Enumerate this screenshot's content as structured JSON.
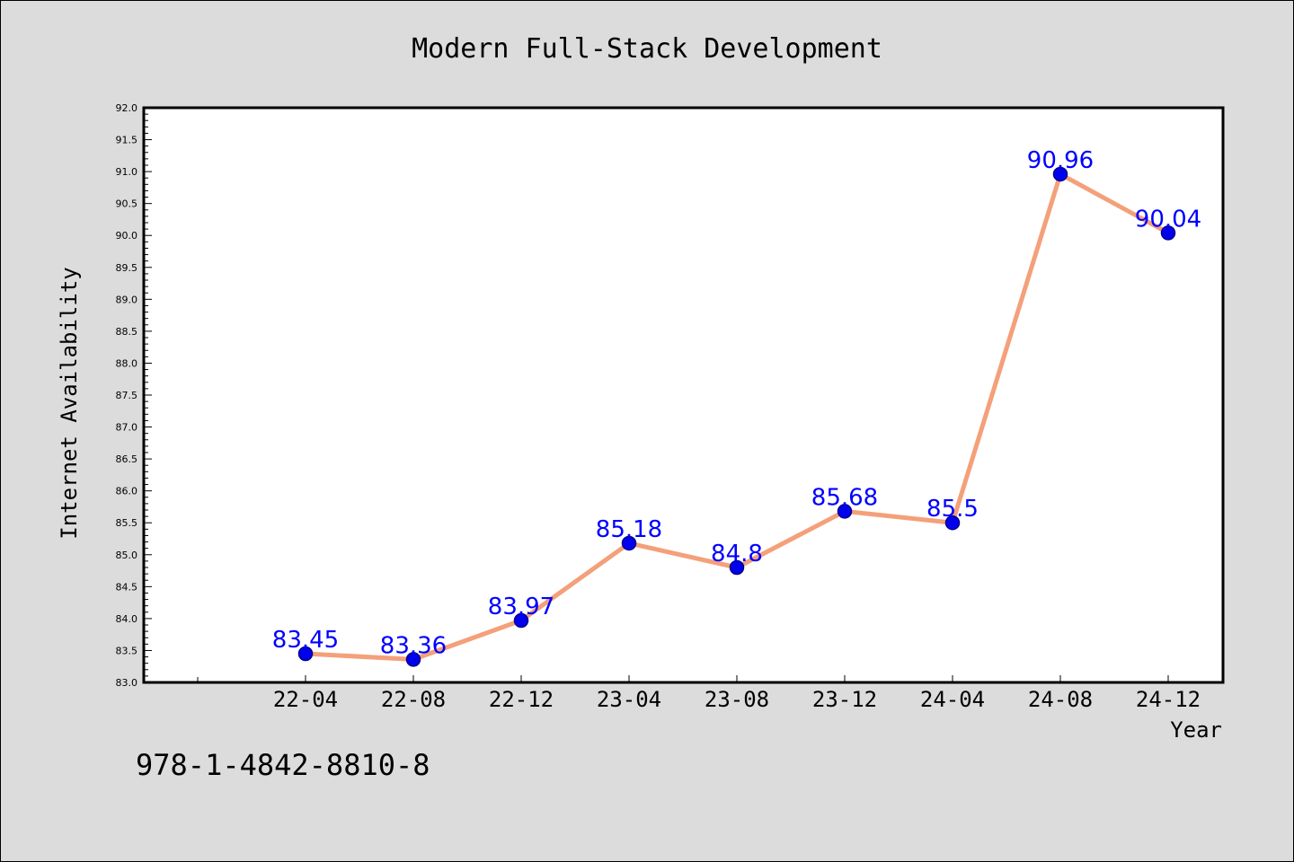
{
  "chart_data": {
    "type": "line",
    "title": "Modern Full-Stack Development",
    "xlabel": "Year",
    "ylabel": "Internet Availability",
    "categories": [
      "22-04",
      "22-08",
      "22-12",
      "23-04",
      "23-08",
      "23-12",
      "24-04",
      "24-08",
      "24-12"
    ],
    "series": [
      {
        "values": [
          83.45,
          83.36,
          83.97,
          85.18,
          84.8,
          85.68,
          85.5,
          90.96,
          90.04
        ]
      }
    ],
    "ylim": [
      83.0,
      92.0
    ],
    "yticks": [
      "83.0",
      "83.5",
      "84.0",
      "84.5",
      "85.0",
      "85.5",
      "86.0",
      "86.5",
      "87.0",
      "87.5",
      "88.0",
      "88.5",
      "89.0",
      "89.5",
      "90.0",
      "90.5",
      "91.0",
      "91.5",
      "92.0"
    ],
    "data_labels": [
      "83.45",
      "83.36",
      "83.97",
      "85.18",
      "84.8",
      "85.68",
      "85.5",
      "90.96",
      "90.04"
    ],
    "grid": false,
    "legend": "none",
    "colors": {
      "line": "#f4a07a",
      "marker": "#0000ee",
      "marker_edge": "#00008b",
      "label": "#0000ff",
      "background": "#dcdcdc",
      "plot_background": "#ffffff"
    }
  },
  "footer": {
    "isbn": "978-1-4842-8810-8"
  }
}
